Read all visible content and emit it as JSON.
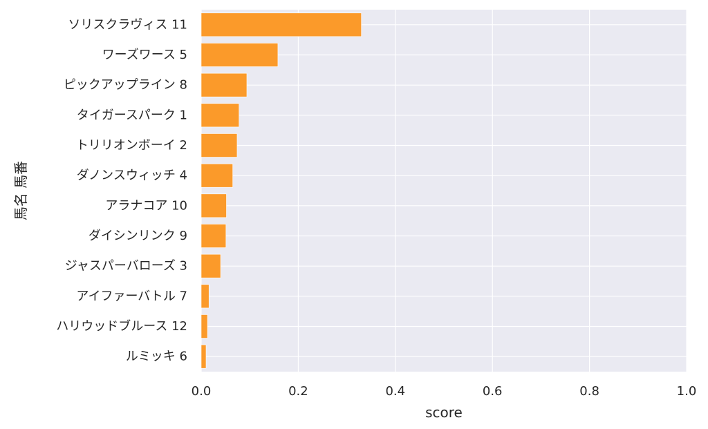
{
  "chart_data": {
    "type": "bar",
    "orientation": "horizontal",
    "categories": [
      "ソリスクラヴィス 11",
      "ワーズワース 5",
      "ピックアップライン 8",
      "タイガースパーク 1",
      "トリリオンボーイ 2",
      "ダノンスウィッチ 4",
      "アラナコア 10",
      "ダイシンリンク 9",
      "ジャスパーバローズ 3",
      "アイファーバトル 7",
      "ハリウッドブルース 12",
      "ルミッキ 6"
    ],
    "values": [
      0.33,
      0.158,
      0.094,
      0.078,
      0.074,
      0.065,
      0.052,
      0.051,
      0.04,
      0.016,
      0.013,
      0.01
    ],
    "xlabel": "score",
    "ylabel": "馬名 馬番",
    "xlim": [
      0,
      1.0
    ],
    "xticks": [
      "0.0",
      "0.2",
      "0.4",
      "0.6",
      "0.8",
      "1.0"
    ],
    "xtick_values": [
      0,
      0.2,
      0.4,
      0.6,
      0.8,
      1.0
    ],
    "grid": true,
    "colors": {
      "bar": "#fb9a2a",
      "background": "#eaeaf2",
      "grid": "#ffffff"
    }
  }
}
